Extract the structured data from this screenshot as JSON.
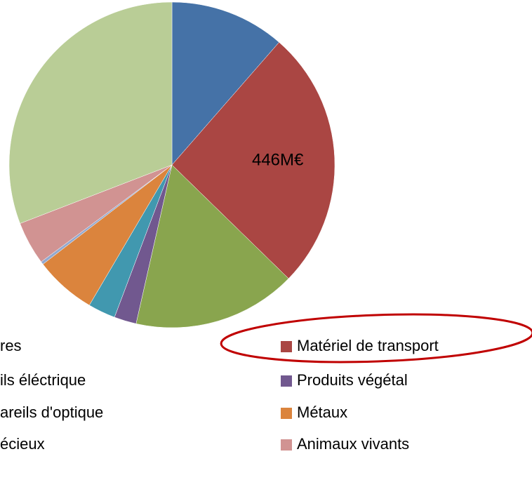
{
  "chart_data": {
    "type": "pie",
    "categories": [
      "res",
      "Matériel de transport",
      "ils éléctrique",
      "Produits végétal",
      "areils d'optique",
      "Métaux",
      "écieux",
      "Animaux vivants",
      null
    ],
    "values": [
      197,
      446,
      280,
      38,
      47,
      105,
      5,
      74,
      532
    ],
    "value_labels": [
      null,
      "446M€",
      null,
      null,
      null,
      null,
      null,
      null,
      null
    ],
    "colors": [
      "#4572a7",
      "#aa4643",
      "#89a54e",
      "#71588f",
      "#4198af",
      "#db843d",
      "#93a9cf",
      "#d19392",
      "#b9cd96"
    ],
    "legend": "bottom"
  }
}
